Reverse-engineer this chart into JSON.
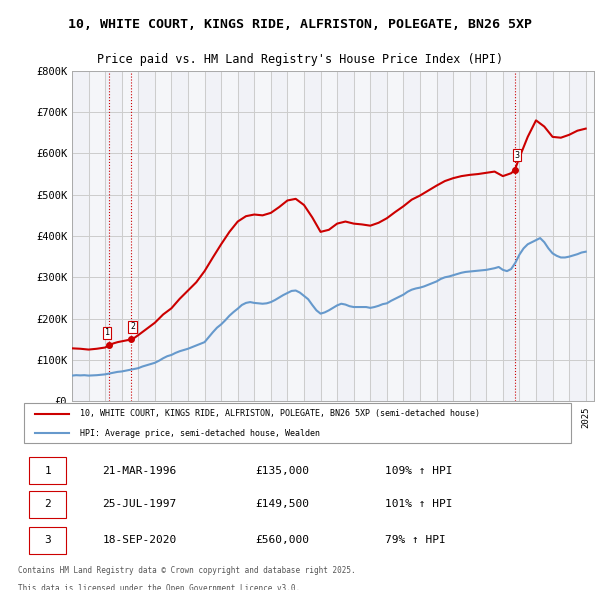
{
  "title_line1": "10, WHITE COURT, KINGS RIDE, ALFRISTON, POLEGATE, BN26 5XP",
  "title_line2": "Price paid vs. HM Land Registry's House Price Index (HPI)",
  "ylabel": "",
  "xlabel": "",
  "ylim": [
    0,
    800000
  ],
  "xlim_start": 1994.0,
  "xlim_end": 2025.5,
  "yticks": [
    0,
    100000,
    200000,
    300000,
    400000,
    500000,
    600000,
    700000,
    800000
  ],
  "ytick_labels": [
    "£0",
    "£100K",
    "£200K",
    "£300K",
    "£400K",
    "£500K",
    "£600K",
    "£700K",
    "£800K"
  ],
  "transactions": [
    {
      "label": "1",
      "date": "21-MAR-1996",
      "year": 1996.22,
      "price": 135000
    },
    {
      "label": "2",
      "date": "25-JUL-1997",
      "year": 1997.56,
      "price": 149500
    },
    {
      "label": "3",
      "date": "18-SEP-2020",
      "year": 2020.72,
      "price": 560000
    }
  ],
  "legend_line1": "10, WHITE COURT, KINGS RIDE, ALFRISTON, POLEGATE, BN26 5XP (semi-detached house)",
  "legend_line2": "HPI: Average price, semi-detached house, Wealden",
  "footer_line1": "Contains HM Land Registry data © Crown copyright and database right 2025.",
  "footer_line2": "This data is licensed under the Open Government Licence v3.0.",
  "property_color": "#cc0000",
  "hpi_color": "#6699cc",
  "background_color": "#ffffff",
  "plot_bg_color": "#ffffff",
  "grid_color": "#cccccc",
  "hatch_color": "#e8e8f0",
  "hpi_data_x": [
    1994.0,
    1994.25,
    1994.5,
    1994.75,
    1995.0,
    1995.25,
    1995.5,
    1995.75,
    1996.0,
    1996.25,
    1996.5,
    1996.75,
    1997.0,
    1997.25,
    1997.5,
    1997.75,
    1998.0,
    1998.25,
    1998.5,
    1998.75,
    1999.0,
    1999.25,
    1999.5,
    1999.75,
    2000.0,
    2000.25,
    2000.5,
    2000.75,
    2001.0,
    2001.25,
    2001.5,
    2001.75,
    2002.0,
    2002.25,
    2002.5,
    2002.75,
    2003.0,
    2003.25,
    2003.5,
    2003.75,
    2004.0,
    2004.25,
    2004.5,
    2004.75,
    2005.0,
    2005.25,
    2005.5,
    2005.75,
    2006.0,
    2006.25,
    2006.5,
    2006.75,
    2007.0,
    2007.25,
    2007.5,
    2007.75,
    2008.0,
    2008.25,
    2008.5,
    2008.75,
    2009.0,
    2009.25,
    2009.5,
    2009.75,
    2010.0,
    2010.25,
    2010.5,
    2010.75,
    2011.0,
    2011.25,
    2011.5,
    2011.75,
    2012.0,
    2012.25,
    2012.5,
    2012.75,
    2013.0,
    2013.25,
    2013.5,
    2013.75,
    2014.0,
    2014.25,
    2014.5,
    2014.75,
    2015.0,
    2015.25,
    2015.5,
    2015.75,
    2016.0,
    2016.25,
    2016.5,
    2016.75,
    2017.0,
    2017.25,
    2017.5,
    2017.75,
    2018.0,
    2018.25,
    2018.5,
    2018.75,
    2019.0,
    2019.25,
    2019.5,
    2019.75,
    2020.0,
    2020.25,
    2020.5,
    2020.75,
    2021.0,
    2021.25,
    2021.5,
    2021.75,
    2022.0,
    2022.25,
    2022.5,
    2022.75,
    2023.0,
    2023.25,
    2023.5,
    2023.75,
    2024.0,
    2024.25,
    2024.5,
    2024.75,
    2025.0
  ],
  "hpi_data_y": [
    62000,
    63000,
    62500,
    63000,
    62000,
    62500,
    63000,
    64000,
    65000,
    67000,
    69000,
    71000,
    72000,
    74000,
    76000,
    78000,
    80000,
    84000,
    87000,
    90000,
    93000,
    98000,
    104000,
    109000,
    112000,
    117000,
    121000,
    124000,
    127000,
    131000,
    135000,
    139000,
    143000,
    155000,
    167000,
    178000,
    186000,
    196000,
    207000,
    216000,
    224000,
    233000,
    238000,
    240000,
    238000,
    237000,
    236000,
    237000,
    240000,
    245000,
    251000,
    257000,
    262000,
    267000,
    268000,
    263000,
    255000,
    247000,
    233000,
    220000,
    212000,
    215000,
    220000,
    226000,
    232000,
    236000,
    234000,
    230000,
    228000,
    228000,
    228000,
    228000,
    226000,
    228000,
    231000,
    235000,
    237000,
    243000,
    248000,
    253000,
    258000,
    265000,
    270000,
    273000,
    275000,
    278000,
    282000,
    286000,
    290000,
    296000,
    300000,
    302000,
    305000,
    308000,
    311000,
    313000,
    314000,
    315000,
    316000,
    317000,
    318000,
    320000,
    322000,
    325000,
    318000,
    315000,
    320000,
    335000,
    355000,
    370000,
    380000,
    385000,
    390000,
    395000,
    385000,
    370000,
    358000,
    352000,
    348000,
    348000,
    350000,
    353000,
    356000,
    360000,
    362000
  ],
  "property_data_x": [
    1994.0,
    1994.5,
    1995.0,
    1995.5,
    1996.0,
    1996.22,
    1996.5,
    1996.75,
    1997.0,
    1997.25,
    1997.56,
    1997.75,
    1998.0,
    1998.5,
    1999.0,
    1999.5,
    2000.0,
    2000.5,
    2001.0,
    2001.5,
    2002.0,
    2002.5,
    2003.0,
    2003.5,
    2004.0,
    2004.5,
    2005.0,
    2005.5,
    2006.0,
    2006.5,
    2007.0,
    2007.5,
    2008.0,
    2008.5,
    2009.0,
    2009.5,
    2010.0,
    2010.5,
    2011.0,
    2011.5,
    2012.0,
    2012.5,
    2013.0,
    2013.5,
    2014.0,
    2014.5,
    2015.0,
    2015.5,
    2016.0,
    2016.5,
    2017.0,
    2017.5,
    2018.0,
    2018.5,
    2019.0,
    2019.5,
    2020.0,
    2020.5,
    2020.72,
    2021.0,
    2021.5,
    2022.0,
    2022.5,
    2023.0,
    2023.5,
    2024.0,
    2024.5,
    2025.0
  ],
  "property_data_y": [
    128000,
    127000,
    125000,
    127000,
    130000,
    135000,
    140000,
    143000,
    145000,
    147000,
    149500,
    153000,
    160000,
    175000,
    190000,
    210000,
    225000,
    248000,
    268000,
    288000,
    315000,
    348000,
    380000,
    410000,
    435000,
    448000,
    452000,
    450000,
    456000,
    470000,
    486000,
    490000,
    475000,
    445000,
    410000,
    415000,
    430000,
    435000,
    430000,
    428000,
    425000,
    432000,
    443000,
    458000,
    472000,
    488000,
    498000,
    510000,
    522000,
    533000,
    540000,
    545000,
    548000,
    550000,
    553000,
    556000,
    545000,
    552000,
    560000,
    590000,
    640000,
    680000,
    665000,
    640000,
    638000,
    645000,
    655000,
    660000
  ]
}
